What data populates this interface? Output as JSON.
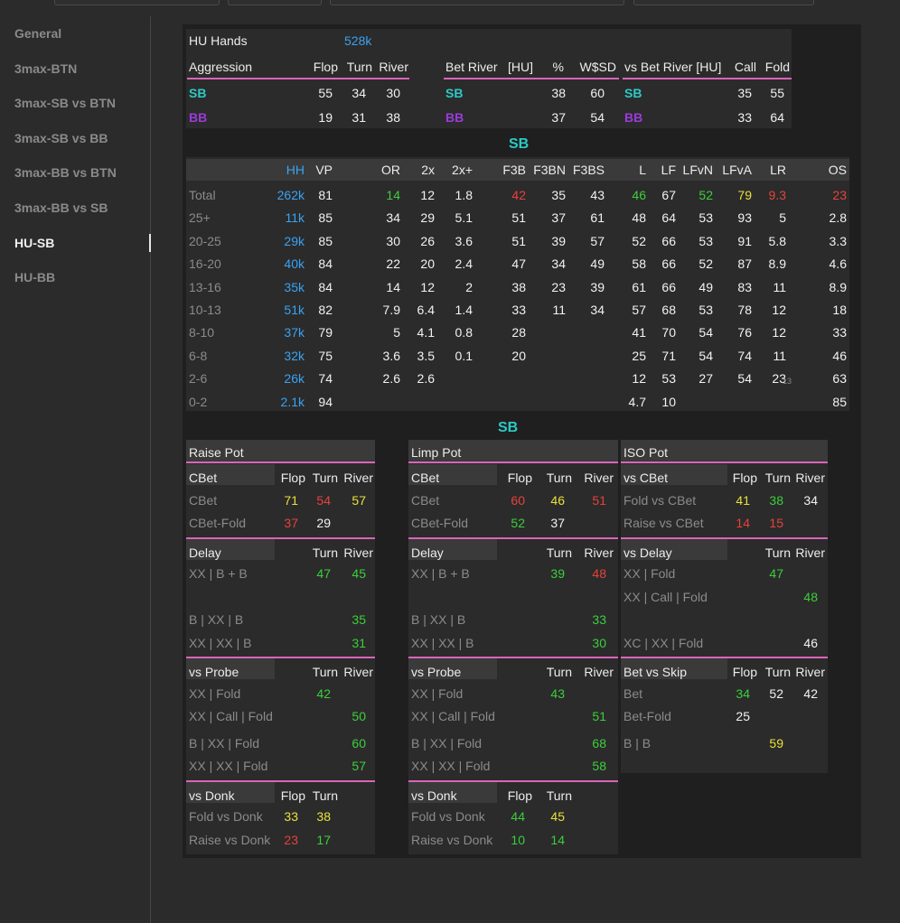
{
  "sidebar": {
    "items": [
      {
        "label": "General",
        "active": false
      },
      {
        "label": "3max-BTN",
        "active": false
      },
      {
        "label": "3max-SB vs BTN",
        "active": false
      },
      {
        "label": "3max-SB vs BB",
        "active": false
      },
      {
        "label": "3max-BB vs BTN",
        "active": false
      },
      {
        "label": "3max-BB vs SB",
        "active": false
      },
      {
        "label": "HU-SB",
        "active": true
      },
      {
        "label": "HU-BB",
        "active": false
      }
    ]
  },
  "summary": {
    "hu_hands_label": "HU Hands",
    "hu_hands_value": "528k",
    "aggression": {
      "title": "Aggression",
      "cols": [
        "Flop",
        "Turn",
        "River"
      ],
      "rows": [
        {
          "pos": "SB",
          "vals": [
            "55",
            "34",
            "30"
          ]
        },
        {
          "pos": "BB",
          "vals": [
            "19",
            "31",
            "38"
          ]
        }
      ]
    },
    "bet_river": {
      "title": "Bet River",
      "sub": "[HU]",
      "cols": [
        "%",
        "W$SD"
      ],
      "rows": [
        {
          "pos": "SB",
          "vals": [
            "38",
            "60"
          ]
        },
        {
          "pos": "BB",
          "vals": [
            "37",
            "54"
          ]
        }
      ]
    },
    "vs_bet_river": {
      "title": "vs Bet River [HU]",
      "cols": [
        "Call",
        "Fold"
      ],
      "rows": [
        {
          "pos": "SB",
          "vals": [
            "35",
            "55"
          ]
        },
        {
          "pos": "BB",
          "vals": [
            "33",
            "64"
          ]
        }
      ]
    }
  },
  "stack_table": {
    "title": "SB",
    "cols": [
      "HH",
      "VP",
      "OR",
      "2x",
      "2x+",
      "F3B",
      "F3BN",
      "F3BS",
      "L",
      "LF",
      "LFvN",
      "LFvA",
      "LR",
      "OS"
    ],
    "rows": [
      {
        "label": "Total",
        "vals": [
          "262k",
          "81",
          "14",
          "12",
          "1.8",
          "42",
          "35",
          "43",
          "46",
          "67",
          "52",
          "79",
          "9.3",
          "23"
        ],
        "lr_small": ""
      },
      {
        "label": "25+",
        "vals": [
          "11k",
          "85",
          "34",
          "29",
          "5.1",
          "51",
          "37",
          "61",
          "48",
          "64",
          "53",
          "93",
          "5",
          "2.8"
        ],
        "lr_small": ""
      },
      {
        "label": "20-25",
        "vals": [
          "29k",
          "85",
          "30",
          "26",
          "3.6",
          "51",
          "39",
          "57",
          "52",
          "66",
          "53",
          "91",
          "5.8",
          "3.3"
        ],
        "lr_small": ""
      },
      {
        "label": "16-20",
        "vals": [
          "40k",
          "84",
          "22",
          "20",
          "2.4",
          "47",
          "34",
          "49",
          "58",
          "66",
          "52",
          "87",
          "8.9",
          "4.6"
        ],
        "lr_small": ""
      },
      {
        "label": "13-16",
        "vals": [
          "35k",
          "84",
          "14",
          "12",
          "2",
          "38",
          "23",
          "39",
          "61",
          "66",
          "49",
          "83",
          "11",
          "8.9"
        ],
        "lr_small": ""
      },
      {
        "label": "10-13",
        "vals": [
          "51k",
          "82",
          "7.9",
          "6.4",
          "1.4",
          "33",
          "11",
          "34",
          "57",
          "68",
          "53",
          "78",
          "12",
          "18"
        ],
        "lr_small": ""
      },
      {
        "label": "8-10",
        "vals": [
          "37k",
          "79",
          "5",
          "4.1",
          "0.8",
          "28",
          "",
          "",
          "41",
          "70",
          "54",
          "76",
          "12",
          "33"
        ],
        "lr_small": ""
      },
      {
        "label": "6-8",
        "vals": [
          "32k",
          "75",
          "3.6",
          "3.5",
          "0.1",
          "20",
          "",
          "",
          "25",
          "71",
          "54",
          "74",
          "11",
          "46"
        ],
        "lr_small": ""
      },
      {
        "label": "2-6",
        "vals": [
          "26k",
          "74",
          "2.6",
          "2.6",
          "",
          "",
          "",
          "",
          "12",
          "53",
          "27",
          "54",
          "23",
          "63"
        ],
        "lr_small": "13"
      },
      {
        "label": "0-2",
        "vals": [
          "2.1k",
          "94",
          "",
          "",
          "",
          "",
          "",
          "",
          "4.7",
          "10",
          "",
          "",
          "",
          "85"
        ],
        "lr_small": ""
      }
    ],
    "colors": {
      "total_or": "#3bcf3b",
      "total_f3b": "#e8413b",
      "total_l": "#3bcf3b",
      "total_lfvn": "#3bcf3b",
      "total_lfva": "#e8e03b",
      "total_lr": "#e8413b",
      "total_os": "#e8413b"
    }
  },
  "pots": {
    "title": "SB",
    "raise": {
      "title": "Raise Pot",
      "cbet": {
        "title": "CBet",
        "cols": [
          "Flop",
          "Turn",
          "River"
        ],
        "rows": [
          {
            "label": "CBet",
            "vals": [
              "71",
              "54",
              "57"
            ]
          },
          {
            "label": "CBet-Fold",
            "vals": [
              "37",
              "29",
              ""
            ]
          }
        ]
      },
      "delay": {
        "title": "Delay",
        "cols": [
          "Turn",
          "River"
        ],
        "rows": [
          {
            "label": "XX | B + B",
            "vals": [
              "47",
              "45"
            ]
          },
          {
            "label": "B | XX | B",
            "vals": [
              "",
              "35"
            ]
          },
          {
            "label": "XX | XX | B",
            "vals": [
              "",
              "31"
            ]
          }
        ]
      },
      "probe": {
        "title": "vs Probe",
        "cols": [
          "Turn",
          "River"
        ],
        "rows": [
          {
            "label": "XX | Fold",
            "vals": [
              "42",
              ""
            ]
          },
          {
            "label": "XX | Call | Fold",
            "vals": [
              "",
              "50"
            ]
          },
          {
            "label": "B | XX | Fold",
            "vals": [
              "",
              "60"
            ]
          },
          {
            "label": "XX | XX | Fold",
            "vals": [
              "",
              "57"
            ]
          }
        ]
      },
      "donk": {
        "title": "vs Donk",
        "cols": [
          "Flop",
          "Turn"
        ],
        "rows": [
          {
            "label": "Fold vs Donk",
            "vals": [
              "33",
              "38"
            ]
          },
          {
            "label": "Raise vs Donk",
            "vals": [
              "23",
              "17"
            ]
          }
        ]
      }
    },
    "limp": {
      "title": "Limp Pot",
      "cbet": {
        "title": "CBet",
        "cols": [
          "Flop",
          "Turn",
          "River"
        ],
        "rows": [
          {
            "label": "CBet",
            "vals": [
              "60",
              "46",
              "51"
            ]
          },
          {
            "label": "CBet-Fold",
            "vals": [
              "52",
              "37",
              ""
            ]
          }
        ]
      },
      "delay": {
        "title": "Delay",
        "cols": [
          "Turn",
          "River"
        ],
        "rows": [
          {
            "label": "XX | B + B",
            "vals": [
              "39",
              "48"
            ]
          },
          {
            "label": "B | XX | B",
            "vals": [
              "",
              "33"
            ]
          },
          {
            "label": "XX | XX | B",
            "vals": [
              "",
              "30"
            ]
          }
        ]
      },
      "probe": {
        "title": "vs Probe",
        "cols": [
          "Turn",
          "River"
        ],
        "rows": [
          {
            "label": "XX | Fold",
            "vals": [
              "43",
              ""
            ]
          },
          {
            "label": "XX | Call | Fold",
            "vals": [
              "",
              "51"
            ]
          },
          {
            "label": "B | XX | Fold",
            "vals": [
              "",
              "68"
            ]
          },
          {
            "label": "XX | XX | Fold",
            "vals": [
              "",
              "58"
            ]
          }
        ]
      },
      "donk": {
        "title": "vs Donk",
        "cols": [
          "Flop",
          "Turn"
        ],
        "rows": [
          {
            "label": "Fold vs Donk",
            "vals": [
              "44",
              "45"
            ]
          },
          {
            "label": "Raise vs Donk",
            "vals": [
              "10",
              "14"
            ]
          }
        ]
      }
    },
    "iso": {
      "title": "ISO Pot",
      "vs_cbet": {
        "title": "vs CBet",
        "cols": [
          "Flop",
          "Turn",
          "River"
        ],
        "rows": [
          {
            "label": "Fold vs CBet",
            "vals": [
              "41",
              "38",
              "34"
            ]
          },
          {
            "label": "Raise vs CBet",
            "vals": [
              "14",
              "15",
              ""
            ]
          }
        ]
      },
      "vs_delay": {
        "title": "vs Delay",
        "cols": [
          "Turn",
          "River"
        ],
        "rows": [
          {
            "label": "XX | Fold",
            "vals": [
              "47",
              ""
            ]
          },
          {
            "label": "XX | Call | Fold",
            "vals": [
              "",
              "48"
            ]
          },
          {
            "label": "XC | XX | Fold",
            "vals": [
              "",
              "46"
            ]
          }
        ]
      },
      "bet_vs_skip": {
        "title": "Bet vs Skip",
        "cols": [
          "Flop",
          "Turn",
          "River"
        ],
        "rows": [
          {
            "label": "Bet",
            "vals": [
              "34",
              "52",
              "42"
            ]
          },
          {
            "label": "Bet-Fold",
            "vals": [
              "25",
              "",
              ""
            ]
          },
          {
            "label": "B | B",
            "vals": [
              "",
              "59",
              ""
            ]
          }
        ]
      }
    }
  }
}
